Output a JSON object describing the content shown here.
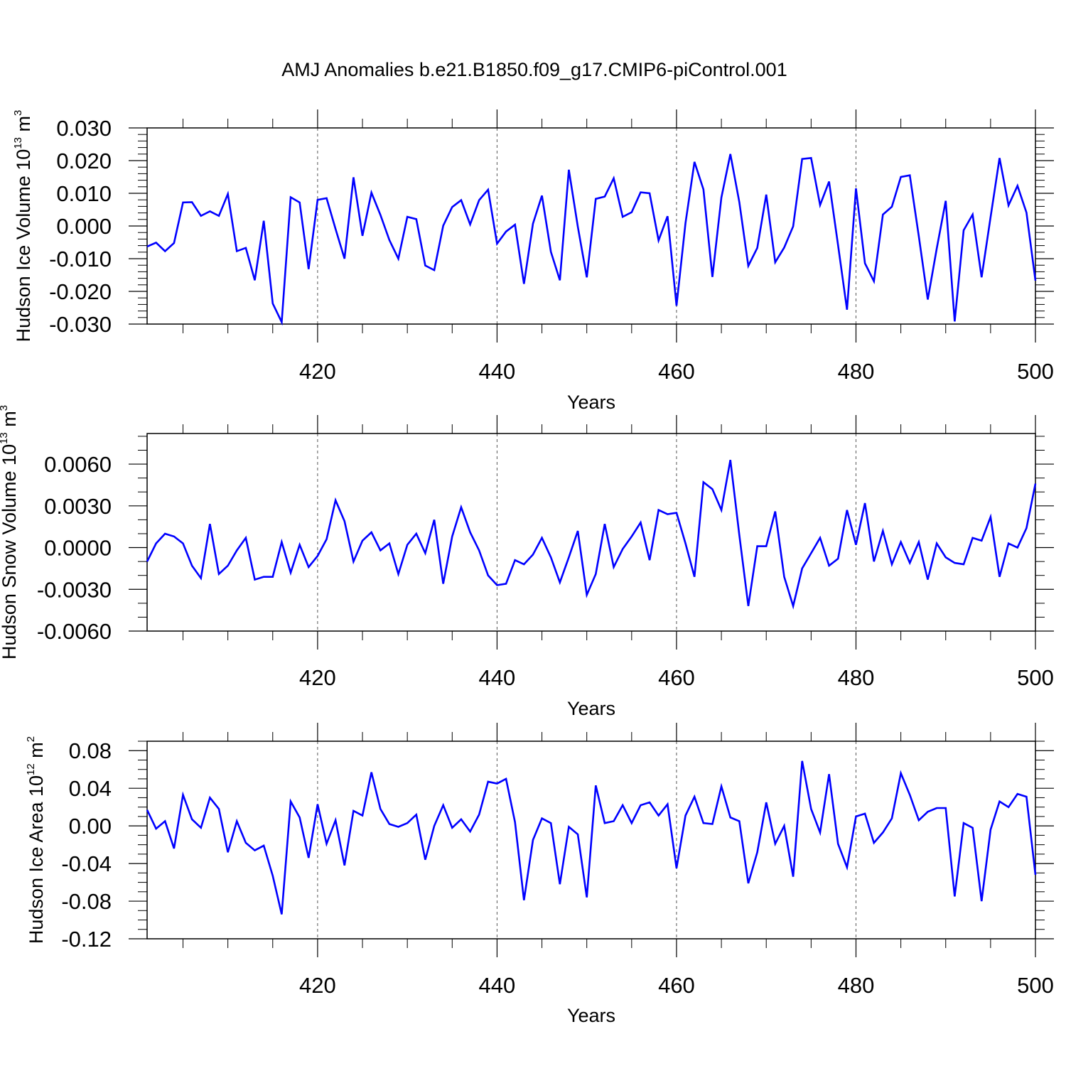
{
  "figure_title": "AMJ Anomalies b.e21.B1850.f09_g17.CMIP6-piControl.001",
  "chart_data": [
    {
      "type": "line",
      "title": "",
      "xlabel": "Years",
      "ylabel_main": "Hudson Ice Volume 10",
      "ylabel_exp": "13",
      "ylabel_unit": " m",
      "ylabel_unit_exp": "3",
      "xlim": [
        401,
        500
      ],
      "ylim": [
        -0.03,
        0.03
      ],
      "x_ticks": [
        420,
        440,
        460,
        480,
        500
      ],
      "y_ticks": [
        -0.03,
        -0.02,
        -0.01,
        0.0,
        0.01,
        0.02,
        0.03
      ],
      "y_tick_labels": [
        "-0.030",
        "-0.020",
        "-0.010",
        "0.000",
        "0.010",
        "0.020",
        "0.030"
      ],
      "y_minor_step": 0.002,
      "grid": "dashed vertical lines at major x ticks",
      "series": [
        {
          "color": "#0000ff",
          "x_start": 401,
          "values": [
            -0.0063,
            -0.0051,
            -0.0077,
            -0.0052,
            0.0072,
            0.0073,
            0.0031,
            0.0045,
            0.0031,
            0.0098,
            -0.0077,
            -0.0067,
            -0.0166,
            0.0016,
            -0.0237,
            -0.0294,
            0.0088,
            0.0072,
            -0.0132,
            0.008,
            0.0085,
            -0.0009,
            -0.01,
            0.0149,
            -0.003,
            0.0102,
            0.0034,
            -0.0043,
            -0.01,
            0.0028,
            0.0021,
            -0.0121,
            -0.0135,
            0.0001,
            0.0058,
            0.0079,
            0.0005,
            0.0079,
            0.0111,
            -0.0054,
            -0.0017,
            0.0004,
            -0.0177,
            0.0007,
            0.0093,
            -0.0079,
            -0.0166,
            0.0172,
            -0.0002,
            -0.0157,
            0.0083,
            0.009,
            0.0146,
            0.0028,
            0.0042,
            0.0103,
            0.01,
            -0.0044,
            0.003,
            -0.0244,
            0.0009,
            0.0196,
            0.0112,
            -0.0156,
            0.0087,
            0.022,
            0.0073,
            -0.0122,
            -0.0067,
            0.0096,
            -0.0111,
            -0.0066,
            -0.0001,
            0.0205,
            0.0208,
            0.0064,
            0.0136,
            -0.0058,
            -0.0256,
            0.0115,
            -0.0114,
            -0.0169,
            0.0035,
            0.0059,
            0.015,
            0.0155,
            -0.0031,
            -0.0225,
            -0.0069,
            0.0077,
            -0.0292,
            -0.0013,
            0.0035,
            -0.0157,
            0.0027,
            0.0208,
            0.0063,
            0.0123,
            0.0041,
            -0.0167
          ]
        }
      ]
    },
    {
      "type": "line",
      "title": "",
      "xlabel": "Years",
      "ylabel_main": "Hudson Snow Volume 10",
      "ylabel_exp": "13",
      "ylabel_unit": " m",
      "ylabel_unit_exp": "3",
      "xlim": [
        401,
        500
      ],
      "ylim": [
        -0.006,
        0.0082
      ],
      "x_ticks": [
        420,
        440,
        460,
        480,
        500
      ],
      "y_ticks": [
        -0.006,
        -0.003,
        0.0,
        0.003,
        0.006
      ],
      "y_tick_labels": [
        "-0.0060",
        "-0.0030",
        "0.0000",
        "0.0030",
        "0.0060"
      ],
      "y_minor_step": 0.001,
      "grid": "dashed vertical lines at major x ticks",
      "series": [
        {
          "color": "#0000ff",
          "x_start": 401,
          "values": [
            -0.001,
            0.0003,
            0.001,
            0.0008,
            0.0003,
            -0.0013,
            -0.0022,
            0.0017,
            -0.0019,
            -0.0013,
            -0.0002,
            0.0007,
            -0.0023,
            -0.0021,
            -0.0021,
            0.0004,
            -0.0018,
            0.0002,
            -0.0014,
            -0.0006,
            0.0006,
            0.0034,
            0.0019,
            -0.001,
            0.0005,
            0.0011,
            -0.0002,
            0.0003,
            -0.0019,
            0.0002,
            0.001,
            -0.0004,
            0.002,
            -0.0026,
            0.0008,
            0.0029,
            0.0011,
            -0.0002,
            -0.002,
            -0.0027,
            -0.0026,
            -0.0009,
            -0.0012,
            -0.0005,
            0.0007,
            -0.0007,
            -0.0025,
            -0.0007,
            0.0012,
            -0.0034,
            -0.0019,
            0.0017,
            -0.0014,
            -0.0001,
            0.0008,
            0.0018,
            -0.0009,
            0.0027,
            0.0024,
            0.0025,
            0.0003,
            -0.0021,
            0.0047,
            0.0042,
            0.0027,
            0.0063,
            0.0009,
            -0.0042,
            0.0001,
            0.0001,
            0.0026,
            -0.0021,
            -0.0042,
            -0.0015,
            -0.0004,
            0.0007,
            -0.0013,
            -0.0008,
            0.0027,
            0.0002,
            0.0032,
            -0.001,
            0.0012,
            -0.0012,
            0.0004,
            -0.0011,
            0.0004,
            -0.0023,
            0.0003,
            -0.0007,
            -0.0011,
            -0.0012,
            0.0007,
            0.0005,
            0.0022,
            -0.0021,
            0.0003,
            0.0,
            0.0014,
            0.0046
          ]
        }
      ]
    },
    {
      "type": "line",
      "title": "",
      "xlabel": "Years",
      "ylabel_main": "Hudson Ice Area 10",
      "ylabel_exp": "12",
      "ylabel_unit": " m",
      "ylabel_unit_exp": "2",
      "xlim": [
        401,
        500
      ],
      "ylim": [
        -0.12,
        0.09
      ],
      "x_ticks": [
        420,
        440,
        460,
        480,
        500
      ],
      "y_ticks": [
        -0.12,
        -0.08,
        -0.04,
        0.0,
        0.04,
        0.08
      ],
      "y_tick_labels": [
        "-0.12",
        "-0.08",
        "-0.04",
        "0.00",
        "0.04",
        "0.08"
      ],
      "y_minor_step": 0.01,
      "grid": "dashed vertical lines at major x ticks",
      "series": [
        {
          "color": "#0000ff",
          "x_start": 401,
          "values": [
            0.017,
            -0.003,
            0.005,
            -0.024,
            0.033,
            0.007,
            -0.002,
            0.03,
            0.018,
            -0.028,
            0.005,
            -0.018,
            -0.026,
            -0.021,
            -0.053,
            -0.094,
            0.026,
            0.009,
            -0.034,
            0.023,
            -0.019,
            0.006,
            -0.042,
            0.016,
            0.011,
            0.057,
            0.018,
            0.002,
            -0.001,
            0.003,
            0.012,
            -0.036,
            0.0,
            0.022,
            -0.002,
            0.007,
            -0.006,
            0.012,
            0.047,
            0.045,
            0.05,
            0.004,
            -0.079,
            -0.015,
            0.008,
            0.003,
            -0.062,
            -0.001,
            -0.009,
            -0.076,
            0.043,
            0.003,
            0.005,
            0.022,
            0.003,
            0.022,
            0.025,
            0.011,
            0.023,
            -0.045,
            0.011,
            0.031,
            0.003,
            0.002,
            0.042,
            0.009,
            0.005,
            -0.061,
            -0.028,
            0.025,
            -0.019,
            0.0,
            -0.054,
            0.069,
            0.018,
            -0.007,
            0.055,
            -0.019,
            -0.044,
            0.01,
            0.013,
            -0.018,
            -0.007,
            0.008,
            0.056,
            0.033,
            0.006,
            0.015,
            0.019,
            0.019,
            -0.075,
            0.003,
            -0.002,
            -0.08,
            -0.004,
            0.026,
            0.02,
            0.034,
            0.031,
            -0.052
          ]
        }
      ]
    }
  ]
}
